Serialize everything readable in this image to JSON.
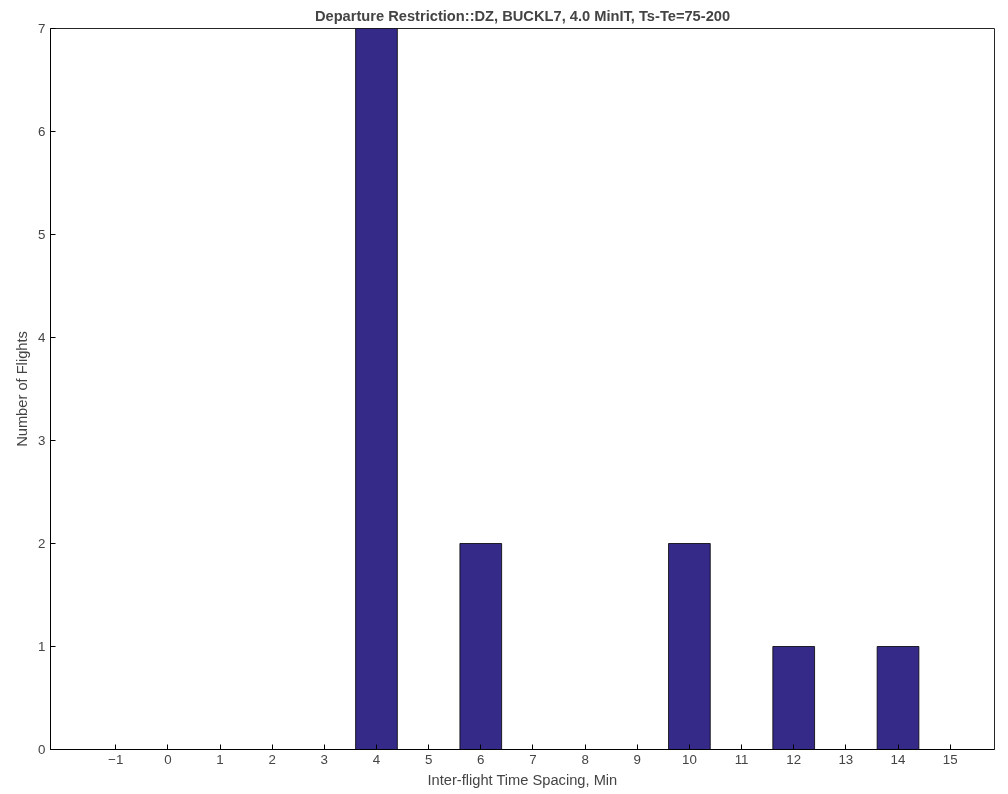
{
  "chart_data": {
    "type": "bar",
    "title": "Departure Restriction::DZ, BUCKL7, 4.0 MinIT, Ts-Te=75-200",
    "xlabel": "Inter-flight Time Spacing, Min",
    "ylabel": "Number of Flights",
    "x": [
      -1,
      0,
      1,
      2,
      3,
      4,
      5,
      6,
      7,
      8,
      9,
      10,
      11,
      12,
      13,
      14
    ],
    "values": [
      0,
      0,
      0,
      0,
      0,
      7,
      0,
      2,
      0,
      0,
      0,
      2,
      0,
      1,
      0,
      1
    ],
    "color": "#352a87",
    "xlim": [
      -2.25,
      15.85
    ],
    "ylim": [
      0,
      7
    ],
    "xticks": [
      -1,
      0,
      1,
      2,
      3,
      4,
      5,
      6,
      7,
      8,
      9,
      10,
      11,
      12,
      13,
      14,
      15
    ],
    "yticks": [
      0,
      1,
      2,
      3,
      4,
      5,
      6,
      7
    ],
    "grid": false
  }
}
